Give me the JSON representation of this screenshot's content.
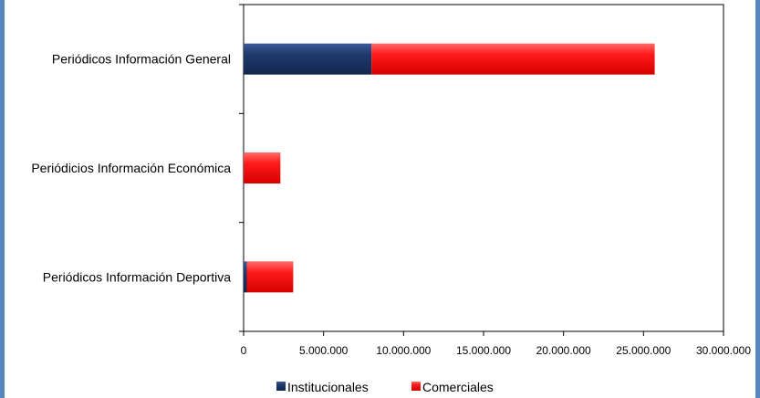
{
  "chart_data": {
    "type": "bar",
    "orientation": "horizontal",
    "stacked": true,
    "categories": [
      "Periódicos Información General",
      "Periódicios Información Económica",
      "Periódicos Información Deportiva"
    ],
    "series": [
      {
        "name": "Institucionales",
        "color": "#1f3a6e",
        "values": [
          8000000,
          0,
          200000
        ]
      },
      {
        "name": "Comerciales",
        "color": "#ff1a1a",
        "values": [
          17700000,
          2300000,
          2900000
        ]
      }
    ],
    "x_ticks": [
      "0",
      "5.000.000",
      "10.000.000",
      "15.000.000",
      "20.000.000",
      "25.000.000",
      "30.000.000"
    ],
    "xlim": [
      0,
      30000000
    ],
    "grid": false,
    "legend_position": "bottom"
  }
}
